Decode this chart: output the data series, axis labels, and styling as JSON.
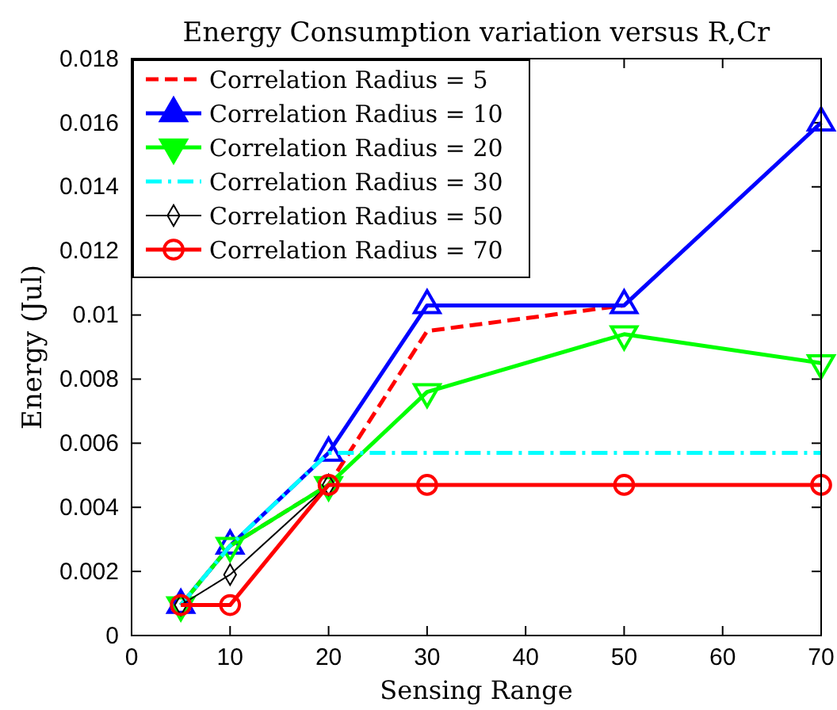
{
  "chart_data": {
    "type": "line",
    "title": "Energy Consumption variation versus R,Cr",
    "xlabel": "Sensing Range",
    "ylabel": "Energy (Jul)",
    "x": [
      5,
      10,
      20,
      30,
      50,
      70
    ],
    "series": [
      {
        "name": "Correlation Radius = 5",
        "color": "#ff0000",
        "line_style": "dashed",
        "marker": "none",
        "values": [
          0.00095,
          0.0028,
          0.0047,
          0.0095,
          0.0103,
          null
        ]
      },
      {
        "name": "Correlation Radius = 10",
        "color": "#0000ff",
        "line_style": "solid",
        "marker": "triangle",
        "values": [
          0.00095,
          0.0028,
          0.0057,
          0.0103,
          0.0103,
          0.016
        ]
      },
      {
        "name": "Correlation Radius = 20",
        "color": "#00ff00",
        "line_style": "solid",
        "marker": "triangle-down",
        "values": [
          0.00095,
          0.0028,
          0.0047,
          0.0076,
          0.0094,
          0.0085
        ]
      },
      {
        "name": "Correlation Radius = 30",
        "color": "#00ffff",
        "line_style": "dashdot",
        "marker": "none",
        "values": [
          0.00095,
          0.0028,
          0.0057,
          0.0057,
          0.0057,
          0.0057
        ]
      },
      {
        "name": "Correlation Radius = 50",
        "color": "#000000",
        "line_style": "solid",
        "marker": "diamond",
        "values": [
          0.00095,
          0.0019,
          0.0047,
          null,
          null,
          null
        ]
      },
      {
        "name": "Correlation Radius = 70",
        "color": "#ff0000",
        "line_style": "solid",
        "marker": "circle",
        "values": [
          0.00095,
          0.00095,
          0.0047,
          0.0047,
          0.0047,
          0.0047
        ]
      }
    ],
    "xlim": [
      0,
      70
    ],
    "xticks": [
      0,
      10,
      20,
      30,
      40,
      50,
      60,
      70
    ],
    "ylim": [
      0,
      0.018
    ],
    "yticks": [
      0,
      0.002,
      0.004,
      0.006,
      0.008,
      0.01,
      0.012,
      0.014,
      0.016,
      0.018
    ],
    "grid": false,
    "legend": "top left"
  }
}
